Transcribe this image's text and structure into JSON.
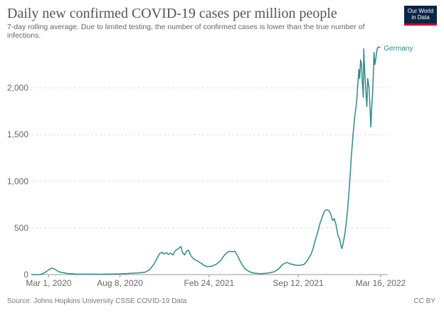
{
  "header": {
    "title": "Daily new confirmed COVID-19 cases per million people",
    "subtitle": "7-day rolling average. Due to limited testing, the number of confirmed cases is lower than the true number of infections."
  },
  "logo": {
    "line1": "Our World",
    "line2": "in Data"
  },
  "footer": {
    "source": "Source: Johns Hopkins University CSSE COVID-19 Data",
    "license": "CC BY"
  },
  "colors": {
    "line": "#2e8b88",
    "grid": "#dddddd",
    "axis": "#999999",
    "tick_text": "#666666"
  },
  "chart_data": {
    "type": "line",
    "title": "Daily new confirmed COVID-19 cases per million people",
    "xlabel": "",
    "ylabel": "",
    "x_axis_unit": "days since 2020-01-22",
    "xlim": [
      0,
      800
    ],
    "ylim": [
      0,
      2500
    ],
    "grid": true,
    "yticks": [
      0,
      500,
      1000,
      1500,
      2000
    ],
    "ytick_labels": [
      "0",
      "500",
      "1,000",
      "1,500",
      "2,000"
    ],
    "xticks": [
      {
        "day": 39,
        "label": "Mar 1, 2020"
      },
      {
        "day": 199,
        "label": "Aug 8, 2020"
      },
      {
        "day": 399,
        "label": "Feb 24, 2021"
      },
      {
        "day": 599,
        "label": "Sep 12, 2021"
      },
      {
        "day": 784,
        "label": "Mar 16, 2022"
      }
    ],
    "series": [
      {
        "name": "Germany",
        "points": [
          [
            0,
            0
          ],
          [
            20,
            0
          ],
          [
            30,
            20
          ],
          [
            40,
            55
          ],
          [
            46,
            70
          ],
          [
            52,
            60
          ],
          [
            62,
            30
          ],
          [
            80,
            12
          ],
          [
            100,
            6
          ],
          [
            150,
            4
          ],
          [
            180,
            6
          ],
          [
            200,
            8
          ],
          [
            220,
            12
          ],
          [
            240,
            18
          ],
          [
            255,
            25
          ],
          [
            265,
            50
          ],
          [
            275,
            110
          ],
          [
            283,
            180
          ],
          [
            288,
            225
          ],
          [
            293,
            240
          ],
          [
            298,
            220
          ],
          [
            303,
            235
          ],
          [
            308,
            215
          ],
          [
            313,
            230
          ],
          [
            318,
            210
          ],
          [
            322,
            250
          ],
          [
            327,
            270
          ],
          [
            332,
            285
          ],
          [
            336,
            300
          ],
          [
            339,
            240
          ],
          [
            344,
            210
          ],
          [
            349,
            255
          ],
          [
            353,
            260
          ],
          [
            357,
            210
          ],
          [
            362,
            180
          ],
          [
            367,
            160
          ],
          [
            373,
            145
          ],
          [
            378,
            130
          ],
          [
            383,
            115
          ],
          [
            389,
            95
          ],
          [
            395,
            85
          ],
          [
            405,
            90
          ],
          [
            415,
            110
          ],
          [
            425,
            150
          ],
          [
            432,
            200
          ],
          [
            438,
            230
          ],
          [
            444,
            250
          ],
          [
            450,
            245
          ],
          [
            457,
            250
          ],
          [
            462,
            210
          ],
          [
            468,
            150
          ],
          [
            474,
            100
          ],
          [
            480,
            60
          ],
          [
            490,
            30
          ],
          [
            500,
            15
          ],
          [
            515,
            10
          ],
          [
            530,
            15
          ],
          [
            545,
            30
          ],
          [
            555,
            60
          ],
          [
            562,
            100
          ],
          [
            568,
            120
          ],
          [
            574,
            130
          ],
          [
            580,
            115
          ],
          [
            587,
            110
          ],
          [
            594,
            100
          ],
          [
            605,
            100
          ],
          [
            612,
            110
          ],
          [
            618,
            140
          ],
          [
            622,
            170
          ],
          [
            628,
            220
          ],
          [
            633,
            290
          ],
          [
            638,
            380
          ],
          [
            643,
            460
          ],
          [
            648,
            550
          ],
          [
            653,
            620
          ],
          [
            658,
            680
          ],
          [
            663,
            695
          ],
          [
            668,
            685
          ],
          [
            672,
            650
          ],
          [
            676,
            580
          ],
          [
            680,
            600
          ],
          [
            684,
            530
          ],
          [
            688,
            420
          ],
          [
            692,
            380
          ],
          [
            695,
            310
          ],
          [
            697,
            280
          ],
          [
            700,
            340
          ],
          [
            703,
            420
          ],
          [
            706,
            520
          ],
          [
            710,
            700
          ],
          [
            714,
            950
          ],
          [
            718,
            1250
          ],
          [
            722,
            1500
          ],
          [
            726,
            1700
          ],
          [
            730,
            1850
          ],
          [
            733,
            2050
          ],
          [
            735,
            2200
          ],
          [
            737,
            2100
          ],
          [
            739,
            2300
          ],
          [
            741,
            2250
          ],
          [
            743,
            2050
          ],
          [
            745,
            1900
          ],
          [
            746,
            2420
          ],
          [
            748,
            2200
          ],
          [
            751,
            1950
          ],
          [
            753,
            1800
          ],
          [
            755,
            2100
          ],
          [
            758,
            2000
          ],
          [
            760,
            1800
          ],
          [
            762,
            1580
          ],
          [
            764,
            1800
          ],
          [
            766,
            1950
          ],
          [
            768,
            2200
          ],
          [
            769,
            2380
          ],
          [
            771,
            2250
          ],
          [
            773,
            2310
          ],
          [
            775,
            2380
          ],
          [
            777,
            2430
          ],
          [
            780,
            2440
          ],
          [
            783,
            2430
          ]
        ]
      }
    ]
  }
}
